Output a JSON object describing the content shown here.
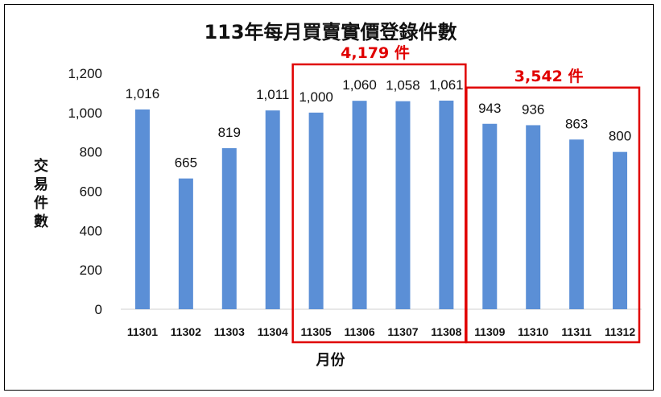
{
  "chart_data": {
    "type": "bar",
    "title": "113年每月買賣實價登錄件數",
    "xlabel": "月份",
    "ylabel": "交易件數",
    "categories": [
      "11301",
      "11302",
      "11303",
      "11304",
      "11305",
      "11306",
      "11307",
      "11308",
      "11309",
      "11310",
      "11311",
      "11312"
    ],
    "values": [
      1016,
      665,
      819,
      1011,
      1000,
      1060,
      1058,
      1061,
      943,
      936,
      863,
      800
    ],
    "ylim": [
      0,
      1200
    ],
    "yticks": [
      0,
      200,
      400,
      600,
      800,
      1000,
      1200
    ],
    "grid": false,
    "bar_color": "#5b8fd6",
    "annotations": [
      {
        "text": "4,179 件",
        "from_category": "11305",
        "to_category": "11308",
        "color": "#e00000"
      },
      {
        "text": "3,542 件",
        "from_category": "11309",
        "to_category": "11312",
        "color": "#e00000"
      }
    ]
  }
}
